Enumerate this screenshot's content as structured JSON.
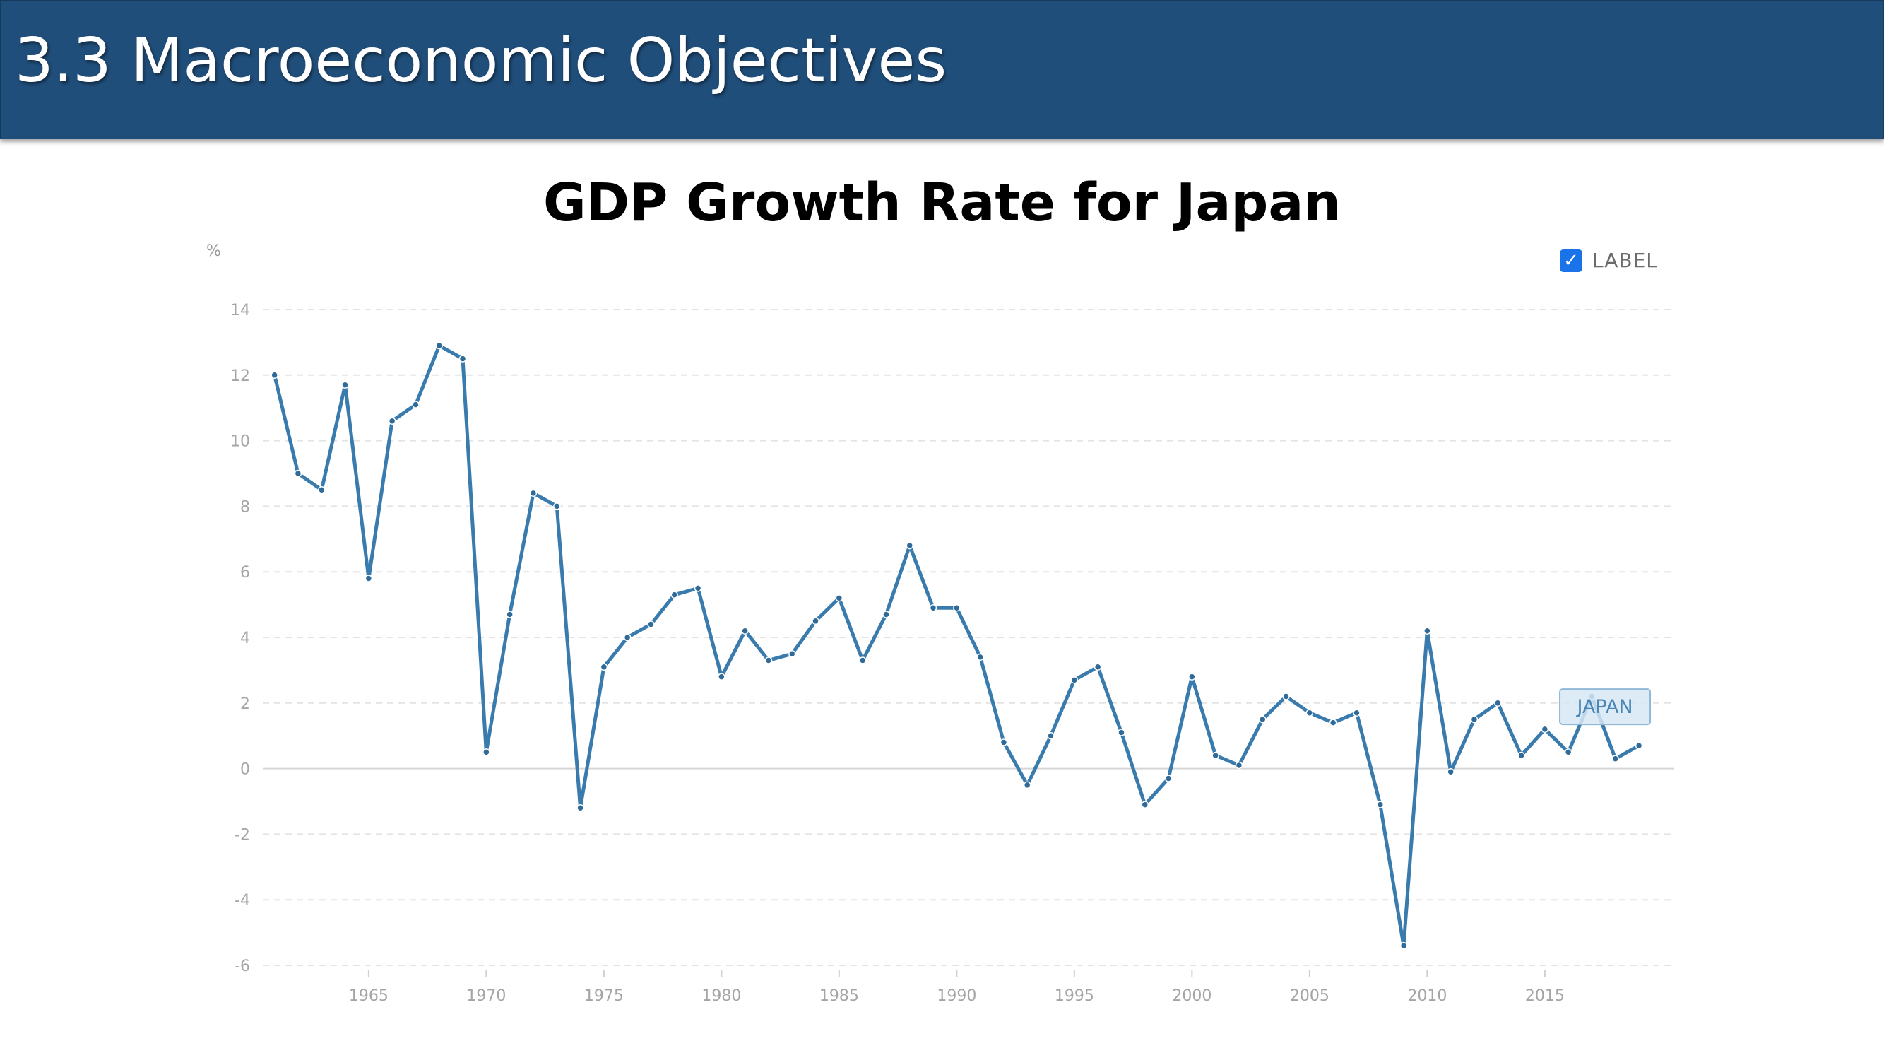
{
  "slide": {
    "title": "3.3 Macroeconomic Objectives"
  },
  "legend": {
    "checkbox_label": "LABEL",
    "checked": true
  },
  "colors": {
    "header": "#204e7a",
    "line": "#3a7bad",
    "checkbox": "#1a73e8",
    "tag_bg": "#d7e7f4",
    "tag_border": "#8fb7d8"
  },
  "chart_data": {
    "type": "line",
    "title": "GDP Growth Rate for Japan",
    "ylabel": "%",
    "xlabel": "",
    "ylim": [
      -6,
      14
    ],
    "yticks": [
      14,
      12,
      10,
      8,
      6,
      4,
      2,
      0,
      -2,
      -4,
      -6
    ],
    "xlim": [
      1960.5,
      2020.5
    ],
    "xticks": [
      1965,
      1970,
      1975,
      1980,
      1985,
      1990,
      1995,
      2000,
      2005,
      2010,
      2015
    ],
    "grid": true,
    "series": [
      {
        "name": "JAPAN",
        "x": [
          1961,
          1962,
          1963,
          1964,
          1965,
          1966,
          1967,
          1968,
          1969,
          1970,
          1971,
          1972,
          1973,
          1974,
          1975,
          1976,
          1977,
          1978,
          1979,
          1980,
          1981,
          1982,
          1983,
          1984,
          1985,
          1986,
          1987,
          1988,
          1989,
          1990,
          1991,
          1992,
          1993,
          1994,
          1995,
          1996,
          1997,
          1998,
          1999,
          2000,
          2001,
          2002,
          2003,
          2004,
          2005,
          2006,
          2007,
          2008,
          2009,
          2010,
          2011,
          2012,
          2013,
          2014,
          2015,
          2016,
          2017,
          2018,
          2019
        ],
        "values": [
          12.0,
          9.0,
          8.5,
          11.7,
          5.8,
          10.6,
          11.1,
          12.9,
          12.5,
          0.5,
          4.7,
          8.4,
          8.0,
          -1.2,
          3.1,
          4.0,
          4.4,
          5.3,
          5.5,
          2.8,
          4.2,
          3.3,
          3.5,
          4.5,
          5.2,
          3.3,
          4.7,
          6.8,
          4.9,
          4.9,
          3.4,
          0.8,
          -0.5,
          1.0,
          2.7,
          3.1,
          1.1,
          -1.1,
          -0.3,
          2.8,
          0.4,
          0.1,
          1.5,
          2.2,
          1.7,
          1.4,
          1.7,
          -1.1,
          -5.4,
          4.2,
          -0.1,
          1.5,
          2.0,
          0.4,
          1.2,
          0.5,
          2.2,
          0.3,
          0.7
        ]
      }
    ]
  }
}
